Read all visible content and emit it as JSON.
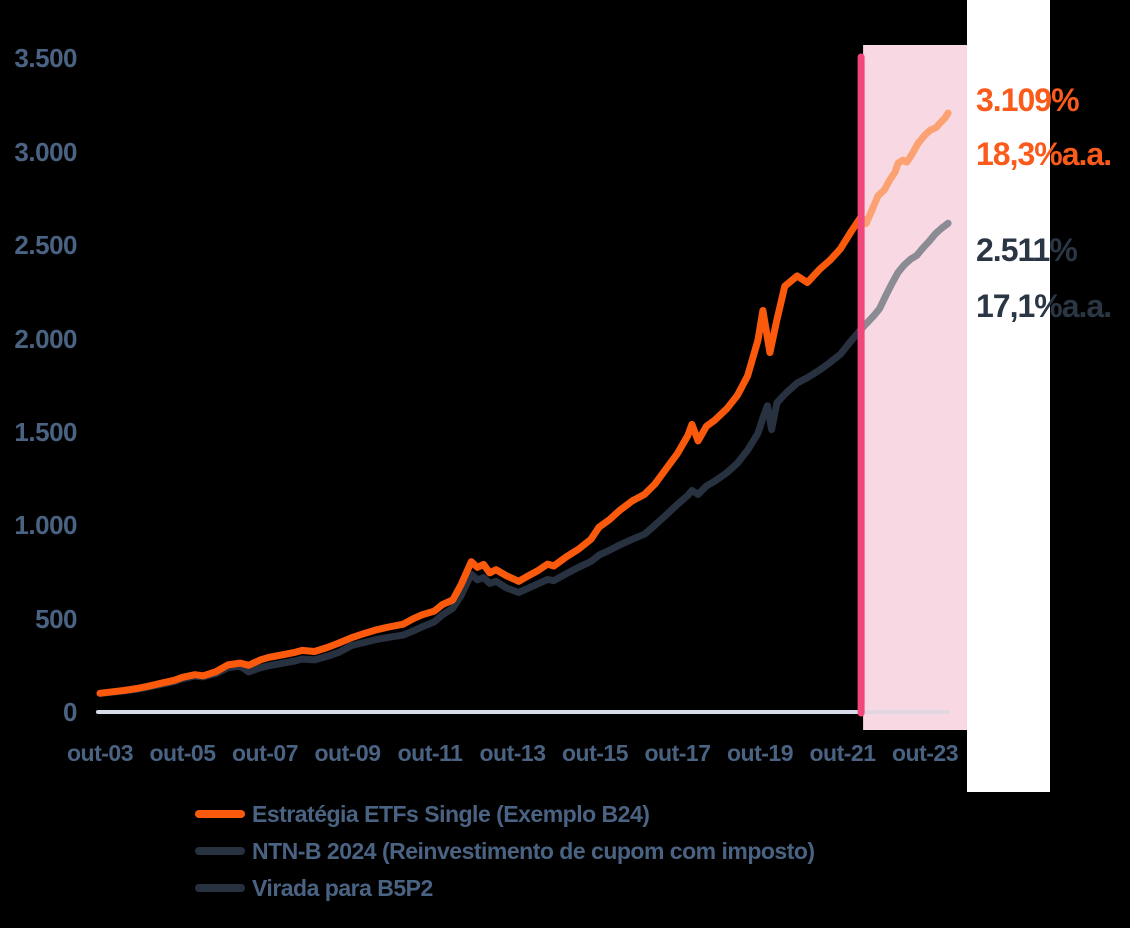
{
  "colors": {
    "background": "#000000",
    "axis_label": "#4A6383",
    "baseline": "#D8DDE8",
    "baseline_in_highlight": "#E2D7E1",
    "white_panel": "#FFFFFF",
    "highlight_region_fill": "#F8D9E3",
    "highlight_line": "#F2477B"
  },
  "chart_data": {
    "type": "line",
    "title": "",
    "xlabel": "",
    "ylabel": "",
    "grid": false,
    "x_unit": "years since out-03",
    "x_range": [
      0,
      20.6
    ],
    "ylim": [
      0,
      3500
    ],
    "y_axis": {
      "ticks": [
        {
          "label": "3.500",
          "v": 3500
        },
        {
          "label": "3.000",
          "v": 3000
        },
        {
          "label": "2.500",
          "v": 2500
        },
        {
          "label": "2.000",
          "v": 2000
        },
        {
          "label": "1.500",
          "v": 1500
        },
        {
          "label": "1.000",
          "v": 1000
        },
        {
          "label": "500",
          "v": 500
        },
        {
          "label": "0",
          "v": 0
        }
      ]
    },
    "x_axis": {
      "ticks": [
        {
          "label": "out-03",
          "t": 0
        },
        {
          "label": "out-05",
          "t": 2
        },
        {
          "label": "out-07",
          "t": 4
        },
        {
          "label": "out-09",
          "t": 6
        },
        {
          "label": "out-11",
          "t": 8
        },
        {
          "label": "out-13",
          "t": 10
        },
        {
          "label": "out-15",
          "t": 12
        },
        {
          "label": "out-17",
          "t": 14
        },
        {
          "label": "out-19",
          "t": 16
        },
        {
          "label": "out-21",
          "t": 18
        },
        {
          "label": "out-23",
          "t": 20
        }
      ]
    },
    "highlight": {
      "t_line": 18.45,
      "region_t": [
        18.5,
        21.02
      ],
      "line_color": "#F2477B",
      "region_fill": "#F8D9E3"
    },
    "series": [
      {
        "id": "estrategia",
        "name": "Estratégia ETFs Single (Exemplo B24)",
        "color_main": "#FB5A0D",
        "color_in_highlight": "#FBA172",
        "points_main": [
          [
            0,
            100
          ],
          [
            0.3,
            108
          ],
          [
            0.6,
            116
          ],
          [
            0.9,
            126
          ],
          [
            1.2,
            140
          ],
          [
            1.5,
            155
          ],
          [
            1.8,
            170
          ],
          [
            2,
            186
          ],
          [
            2.3,
            200
          ],
          [
            2.5,
            194
          ],
          [
            2.8,
            215
          ],
          [
            3.1,
            252
          ],
          [
            3.4,
            262
          ],
          [
            3.6,
            250
          ],
          [
            3.9,
            280
          ],
          [
            4.1,
            293
          ],
          [
            4.4,
            305
          ],
          [
            4.7,
            318
          ],
          [
            4.9,
            330
          ],
          [
            5.2,
            324
          ],
          [
            5.5,
            345
          ],
          [
            5.8,
            370
          ],
          [
            6.1,
            398
          ],
          [
            6.4,
            420
          ],
          [
            6.7,
            440
          ],
          [
            7,
            455
          ],
          [
            7.35,
            470
          ],
          [
            7.6,
            500
          ],
          [
            7.8,
            520
          ],
          [
            8.1,
            540
          ],
          [
            8.3,
            575
          ],
          [
            8.55,
            600
          ],
          [
            8.75,
            680
          ],
          [
            9,
            805
          ],
          [
            9.15,
            775
          ],
          [
            9.3,
            790
          ],
          [
            9.45,
            745
          ],
          [
            9.6,
            762
          ],
          [
            9.85,
            730
          ],
          [
            10.15,
            700
          ],
          [
            10.35,
            725
          ],
          [
            10.6,
            755
          ],
          [
            10.85,
            792
          ],
          [
            11,
            782
          ],
          [
            11.3,
            830
          ],
          [
            11.6,
            872
          ],
          [
            11.9,
            925
          ],
          [
            12.1,
            990
          ],
          [
            12.35,
            1030
          ],
          [
            12.6,
            1080
          ],
          [
            12.9,
            1130
          ],
          [
            13.2,
            1165
          ],
          [
            13.45,
            1220
          ],
          [
            13.7,
            1295
          ],
          [
            14,
            1385
          ],
          [
            14.25,
            1480
          ],
          [
            14.35,
            1540
          ],
          [
            14.5,
            1452
          ],
          [
            14.7,
            1530
          ],
          [
            14.9,
            1562
          ],
          [
            15.2,
            1625
          ],
          [
            15.45,
            1695
          ],
          [
            15.7,
            1800
          ],
          [
            15.95,
            1990
          ],
          [
            16.07,
            2150
          ],
          [
            16.24,
            1925
          ],
          [
            16.41,
            2100
          ],
          [
            16.6,
            2280
          ],
          [
            16.9,
            2335
          ],
          [
            17.15,
            2300
          ],
          [
            17.45,
            2372
          ],
          [
            17.7,
            2420
          ],
          [
            17.95,
            2480
          ],
          [
            18.2,
            2570
          ],
          [
            18.45,
            2652
          ]
        ],
        "points_highlight": [
          [
            18.45,
            2652
          ],
          [
            18.57,
            2615
          ],
          [
            18.72,
            2690
          ],
          [
            18.86,
            2765
          ],
          [
            19.01,
            2795
          ],
          [
            19.15,
            2850
          ],
          [
            19.27,
            2890
          ],
          [
            19.35,
            2940
          ],
          [
            19.47,
            2955
          ],
          [
            19.56,
            2945
          ],
          [
            19.68,
            2985
          ],
          [
            19.83,
            3045
          ],
          [
            20.0,
            3090
          ],
          [
            20.12,
            3115
          ],
          [
            20.27,
            3130
          ],
          [
            20.39,
            3160
          ],
          [
            20.48,
            3180
          ],
          [
            20.56,
            3207
          ]
        ]
      },
      {
        "id": "ntnb",
        "name": "NTN-B 2024 (Reinvestimento de cupom com imposto)",
        "color_main": "#27313F",
        "color_in_highlight": "#8B8B94",
        "points_main": [
          [
            0,
            100
          ],
          [
            0.3,
            106
          ],
          [
            0.6,
            113
          ],
          [
            0.9,
            122
          ],
          [
            1.2,
            135
          ],
          [
            1.5,
            149
          ],
          [
            1.8,
            163
          ],
          [
            2,
            178
          ],
          [
            2.3,
            192
          ],
          [
            2.5,
            188
          ],
          [
            2.8,
            205
          ],
          [
            3.1,
            238
          ],
          [
            3.4,
            245
          ],
          [
            3.6,
            215
          ],
          [
            3.9,
            238
          ],
          [
            4.1,
            248
          ],
          [
            4.4,
            260
          ],
          [
            4.7,
            272
          ],
          [
            4.9,
            284
          ],
          [
            5.2,
            279
          ],
          [
            5.5,
            298
          ],
          [
            5.8,
            320
          ],
          [
            6.1,
            356
          ],
          [
            6.4,
            372
          ],
          [
            6.7,
            388
          ],
          [
            7,
            400
          ],
          [
            7.35,
            412
          ],
          [
            7.6,
            435
          ],
          [
            7.8,
            455
          ],
          [
            8.1,
            482
          ],
          [
            8.3,
            520
          ],
          [
            8.55,
            556
          ],
          [
            8.75,
            622
          ],
          [
            9,
            738
          ],
          [
            9.15,
            708
          ],
          [
            9.3,
            720
          ],
          [
            9.45,
            688
          ],
          [
            9.6,
            700
          ],
          [
            9.85,
            665
          ],
          [
            10.15,
            640
          ],
          [
            10.35,
            660
          ],
          [
            10.6,
            685
          ],
          [
            10.85,
            710
          ],
          [
            11,
            703
          ],
          [
            11.3,
            740
          ],
          [
            11.6,
            775
          ],
          [
            11.9,
            806
          ],
          [
            12.1,
            840
          ],
          [
            12.35,
            866
          ],
          [
            12.6,
            895
          ],
          [
            12.9,
            925
          ],
          [
            13.2,
            952
          ],
          [
            13.45,
            1000
          ],
          [
            13.7,
            1050
          ],
          [
            14,
            1112
          ],
          [
            14.25,
            1160
          ],
          [
            14.35,
            1186
          ],
          [
            14.5,
            1165
          ],
          [
            14.7,
            1210
          ],
          [
            14.9,
            1236
          ],
          [
            15.2,
            1282
          ],
          [
            15.45,
            1332
          ],
          [
            15.7,
            1402
          ],
          [
            15.95,
            1492
          ],
          [
            16.07,
            1575
          ],
          [
            16.18,
            1640
          ],
          [
            16.28,
            1512
          ],
          [
            16.41,
            1655
          ],
          [
            16.6,
            1702
          ],
          [
            16.9,
            1762
          ],
          [
            17.15,
            1790
          ],
          [
            17.45,
            1832
          ],
          [
            17.7,
            1872
          ],
          [
            17.95,
            1916
          ],
          [
            18.2,
            1985
          ],
          [
            18.45,
            2050
          ]
        ],
        "points_highlight": [
          [
            18.45,
            2050
          ],
          [
            18.6,
            2085
          ],
          [
            18.75,
            2120
          ],
          [
            18.9,
            2160
          ],
          [
            19.05,
            2230
          ],
          [
            19.2,
            2295
          ],
          [
            19.35,
            2355
          ],
          [
            19.5,
            2395
          ],
          [
            19.65,
            2425
          ],
          [
            19.8,
            2445
          ],
          [
            19.95,
            2485
          ],
          [
            20.1,
            2520
          ],
          [
            20.25,
            2560
          ],
          [
            20.4,
            2590
          ],
          [
            20.56,
            2617
          ]
        ]
      }
    ],
    "legend_position": "bottom-left"
  },
  "annotations": {
    "estrategia": {
      "total": "3.109%",
      "rate": "18,3%a.a.",
      "color": "#FA5A1A"
    },
    "ntnb": {
      "total": "2.511%",
      "rate": "17,1%a.a.",
      "color": "#2B3645"
    }
  },
  "legend": {
    "items": [
      {
        "label": "Estratégia ETFs Single (Exemplo B24)",
        "color": "#FB5A0D"
      },
      {
        "label": "NTN-B 2024 (Reinvestimento de cupom com imposto)",
        "color": "#27313F"
      },
      {
        "label": "Virada para B5P2",
        "color": "#27313F"
      }
    ]
  }
}
